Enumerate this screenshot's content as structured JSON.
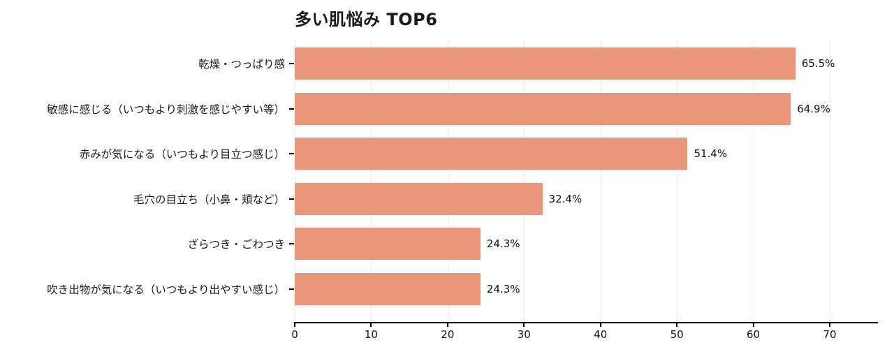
{
  "title": "多い肌悩み TOP6",
  "colors": {
    "bar": "#E9967A",
    "grid": "#ececec",
    "axis": "#000000",
    "text": "#1a1a1a"
  },
  "chart_data": {
    "type": "bar",
    "orientation": "horizontal",
    "title": "多い肌悩み TOP6",
    "categories": [
      "乾燥・つっぱり感",
      "敏感に感じる（いつもより刺激を感じやすい等）",
      "赤みが気になる（いつもより目立つ感じ）",
      "毛穴の目立ち（小鼻・頬など）",
      "ざらつき・ごわつき",
      "吹き出物が気になる（いつもより出やすい感じ）"
    ],
    "values": [
      65.5,
      64.9,
      51.4,
      32.4,
      24.3,
      24.3
    ],
    "value_labels": [
      "65.5%",
      "64.9%",
      "51.4%",
      "32.4%",
      "24.3%",
      "24.3%"
    ],
    "xlabel": "",
    "ylabel": "",
    "xlim": [
      0,
      70
    ],
    "xticks": [
      0,
      10,
      20,
      30,
      40,
      50,
      60,
      70
    ],
    "grid": true,
    "legend": false
  }
}
